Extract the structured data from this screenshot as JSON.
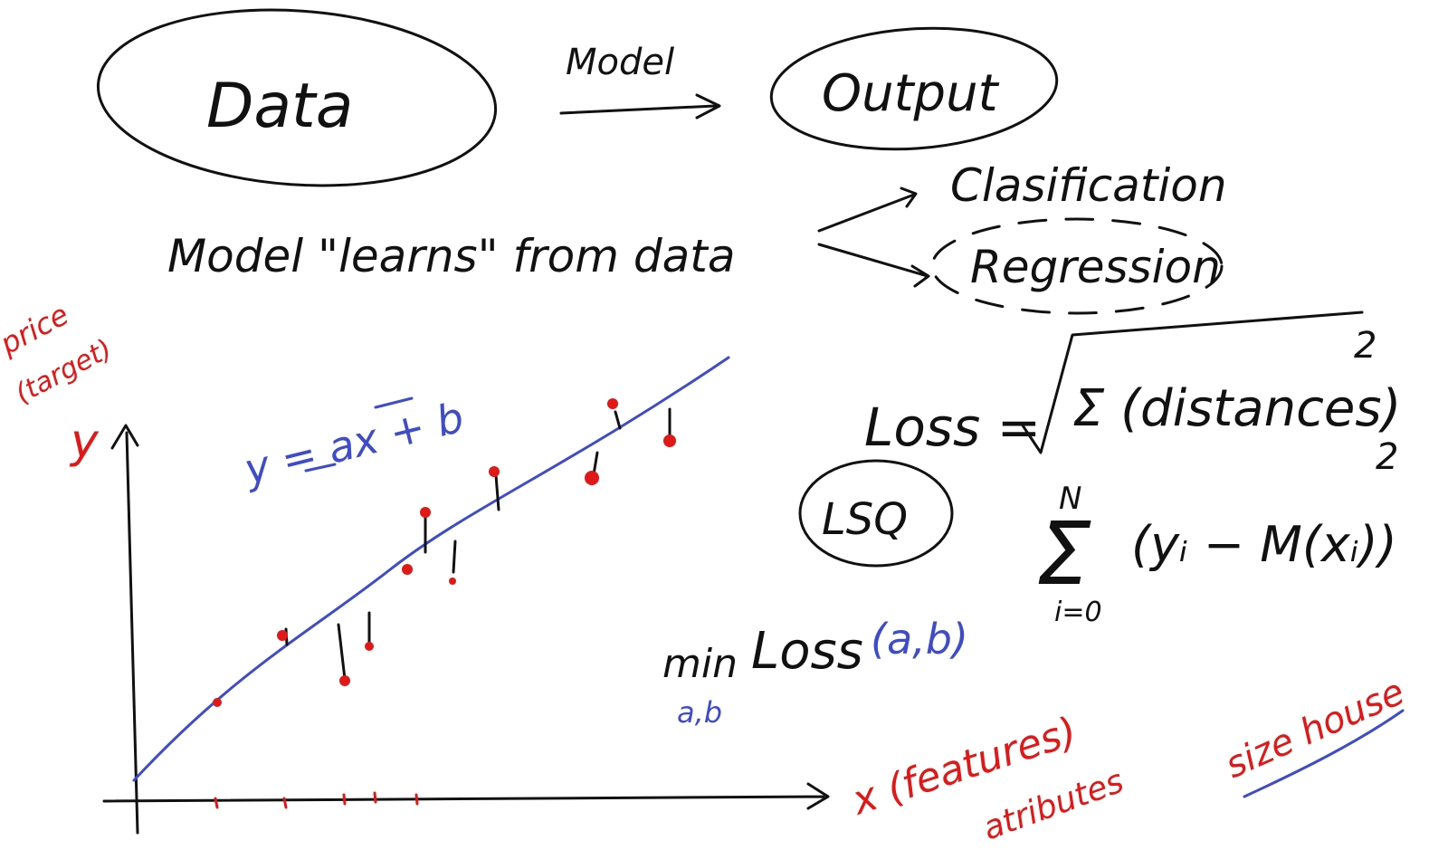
{
  "flow": {
    "data_label": "Data",
    "model_label": "Model",
    "output_label": "Output"
  },
  "learning": {
    "sentence": "Model \"learns\" from data",
    "branch_1": "Clasification",
    "branch_2": "Regression"
  },
  "formulas": {
    "loss_word": "Loss =",
    "loss_sum": "Σ (distances)",
    "loss_power": "2",
    "lsq": "LSQ",
    "sum_top": "N",
    "sum_symbol": "Σ",
    "sum_bottom": "i=0",
    "sum_body": "(yᵢ − M(xᵢ))",
    "sum_power": "2",
    "min_word": "min",
    "min_sub": "a,b",
    "min_loss": "Loss",
    "min_args": "(a,b)"
  },
  "plot": {
    "y_label_1": "price",
    "y_label_2": "(target)",
    "y_axis": "y",
    "x_axis": "x (features)",
    "x_axis_2": "atributes",
    "line_eq": "y = ax + b",
    "size_house": "size house"
  },
  "colors": {
    "black": "#111111",
    "blue": "#3f4cc9",
    "red": "#e01818"
  }
}
